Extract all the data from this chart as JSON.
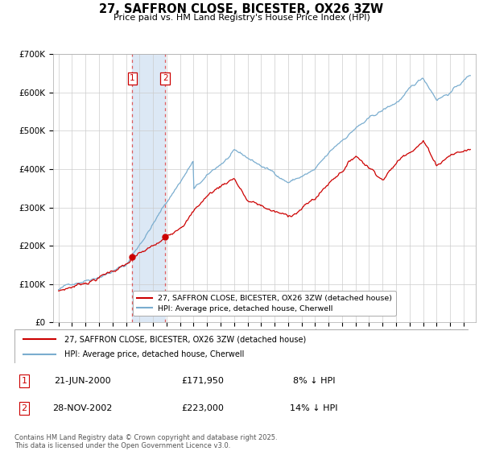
{
  "title": "27, SAFFRON CLOSE, BICESTER, OX26 3ZW",
  "subtitle": "Price paid vs. HM Land Registry's House Price Index (HPI)",
  "ylim": [
    0,
    700000
  ],
  "yticks": [
    0,
    100000,
    200000,
    300000,
    400000,
    500000,
    600000,
    700000
  ],
  "ytick_labels": [
    "£0",
    "£100K",
    "£200K",
    "£300K",
    "£400K",
    "£500K",
    "£600K",
    "£700K"
  ],
  "line_color_red": "#cc0000",
  "line_color_blue": "#7aadcf",
  "shade_color": "#dce8f5",
  "sale1_year": 2000.47,
  "sale1_price": 171950,
  "sale2_year": 2002.91,
  "sale2_price": 223000,
  "legend_line1": "27, SAFFRON CLOSE, BICESTER, OX26 3ZW (detached house)",
  "legend_line2": "HPI: Average price, detached house, Cherwell",
  "table_entries": [
    {
      "num": "1",
      "date": "21-JUN-2000",
      "price": "£171,950",
      "pct": "8% ↓ HPI"
    },
    {
      "num": "2",
      "date": "28-NOV-2002",
      "price": "£223,000",
      "pct": "14% ↓ HPI"
    }
  ],
  "footer": "Contains HM Land Registry data © Crown copyright and database right 2025.\nThis data is licensed under the Open Government Licence v3.0.",
  "grid_color": "#cccccc",
  "xlim_left": 1994.6,
  "xlim_right": 2025.9
}
